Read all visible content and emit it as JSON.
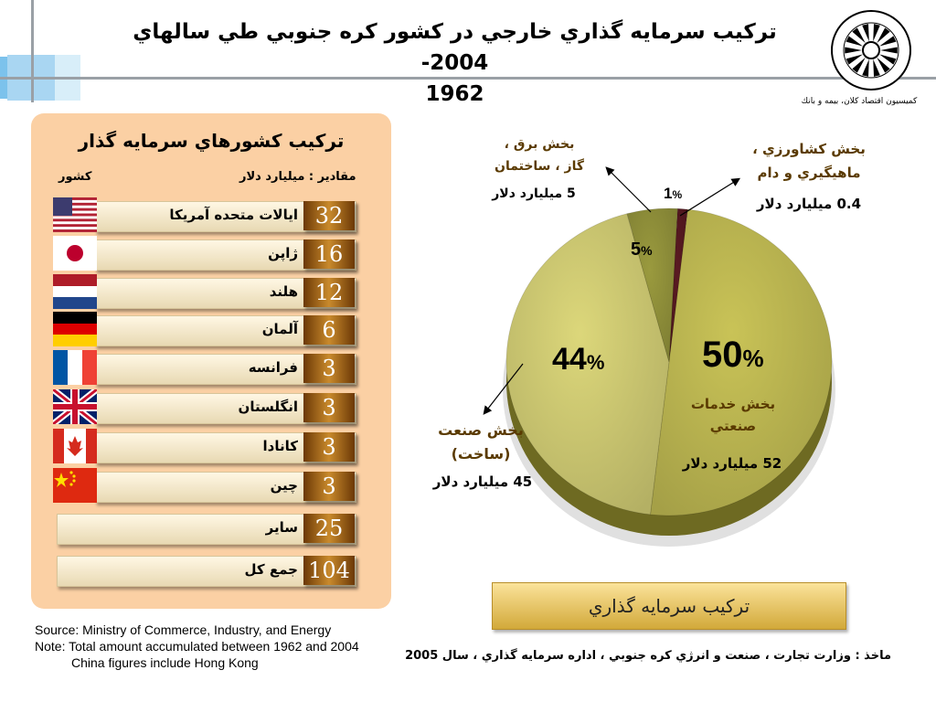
{
  "title": "تركيب سرمايه گذاري خارجي در كشور كره جنوبي طي سالهاي 2004-1962",
  "title_line1": "تركيب سرمايه گذاري خارجي در كشور كره جنوبي طي سالهاي 2004-",
  "title_line2": "1962",
  "logo_caption": "كميسيون اقتصاد كلان، بيمه و بانك",
  "panel": {
    "title": "تركيب كشورهاي سرمايه گذار",
    "header_country": "كشور",
    "header_unit": "مقادير : ميليارد دلار",
    "rows": [
      {
        "name": "ايالات متحده آمريكا",
        "value": "32",
        "flag": "usa-flag-icon"
      },
      {
        "name": "ژاپن",
        "value": "16",
        "flag": "japan-flag-icon"
      },
      {
        "name": "هلند",
        "value": "12",
        "flag": "netherlands-flag-icon"
      },
      {
        "name": "آلمان",
        "value": "6",
        "flag": "germany-flag-icon"
      },
      {
        "name": "فرانسه",
        "value": "3",
        "flag": "france-flag-icon"
      },
      {
        "name": "انگلستان",
        "value": "3",
        "flag": "uk-flag-icon"
      },
      {
        "name": "كانادا",
        "value": "3",
        "flag": "canada-flag-icon"
      },
      {
        "name": "چين",
        "value": "3",
        "flag": "china-flag-icon"
      },
      {
        "name": "ساير",
        "value": "25"
      },
      {
        "name": "جمع كل",
        "value": "104"
      }
    ]
  },
  "chart_data": [
    {
      "type": "table",
      "title": "تركيب كشورهاي سرمايه گذار",
      "columns": [
        "كشور",
        "مقادير : ميليارد دلار"
      ],
      "categories": [
        "ايالات متحده آمريكا",
        "ژاپن",
        "هلند",
        "آلمان",
        "فرانسه",
        "انگلستان",
        "كانادا",
        "چين",
        "ساير",
        "جمع كل"
      ],
      "values": [
        32,
        16,
        12,
        6,
        3,
        3,
        3,
        3,
        25,
        104
      ]
    },
    {
      "type": "pie",
      "title": "تركيب سرمايه گذاري",
      "slices": [
        {
          "name": "بخش خدمات صنعتي",
          "percent": 50,
          "value": 52,
          "value_label": "52 ميليارد دلار",
          "color": "#c9c357"
        },
        {
          "name": "بخش صنعت (ساخت)",
          "percent": 44,
          "value": 45,
          "value_label": "45 ميليارد دلار",
          "color": "#dcd77a"
        },
        {
          "name": "بخش برق ، گاز ، ساختمان",
          "percent": 5,
          "value": 5,
          "value_label": "5 ميليارد دلار",
          "color": "#9a9a3e"
        },
        {
          "name": "بخش كشاورزي ، ماهيگيري و دام",
          "percent": 1,
          "value": 0.4,
          "value_label": "0.4 ميليارد دلار",
          "color": "#5a1a22"
        }
      ]
    }
  ],
  "pie_labels": {
    "s50_pct": "50",
    "s44_pct": "44",
    "s5_pct": "5",
    "s1_pct": "1",
    "pct_sign": "%",
    "s50_name_1": "بخش خدمات",
    "s50_name_2": "صنعتي",
    "s50_value": "52 ميليارد دلار",
    "s44_name_1": "بخش صنعت",
    "s44_name_2": "(ساخت)",
    "s44_value": "45 ميليارد دلار",
    "s5_name_1": "بخش برق ،",
    "s5_name_2": "گاز ، ساختمان",
    "s5_value": "5  ميليارد دلار",
    "s1_name_1": "بخش كشاورزي ،",
    "s1_name_2": "ماهيگيري و دام",
    "s1_value": "0.4 ميليارد دلار"
  },
  "legend_box": "تركيب سرمايه گذاري",
  "source_en": {
    "line1": "Source: Ministry of Commerce, Industry, and Energy",
    "line2": "Note: Total amount accumulated between 1962 and 2004",
    "line3": "China figures include Hong Kong"
  },
  "source_fa": "ماخذ : وزارت تجارت ، صنعت و انرژي كره جنوبي ، اداره سرمايه گذاري ، سال 2005"
}
